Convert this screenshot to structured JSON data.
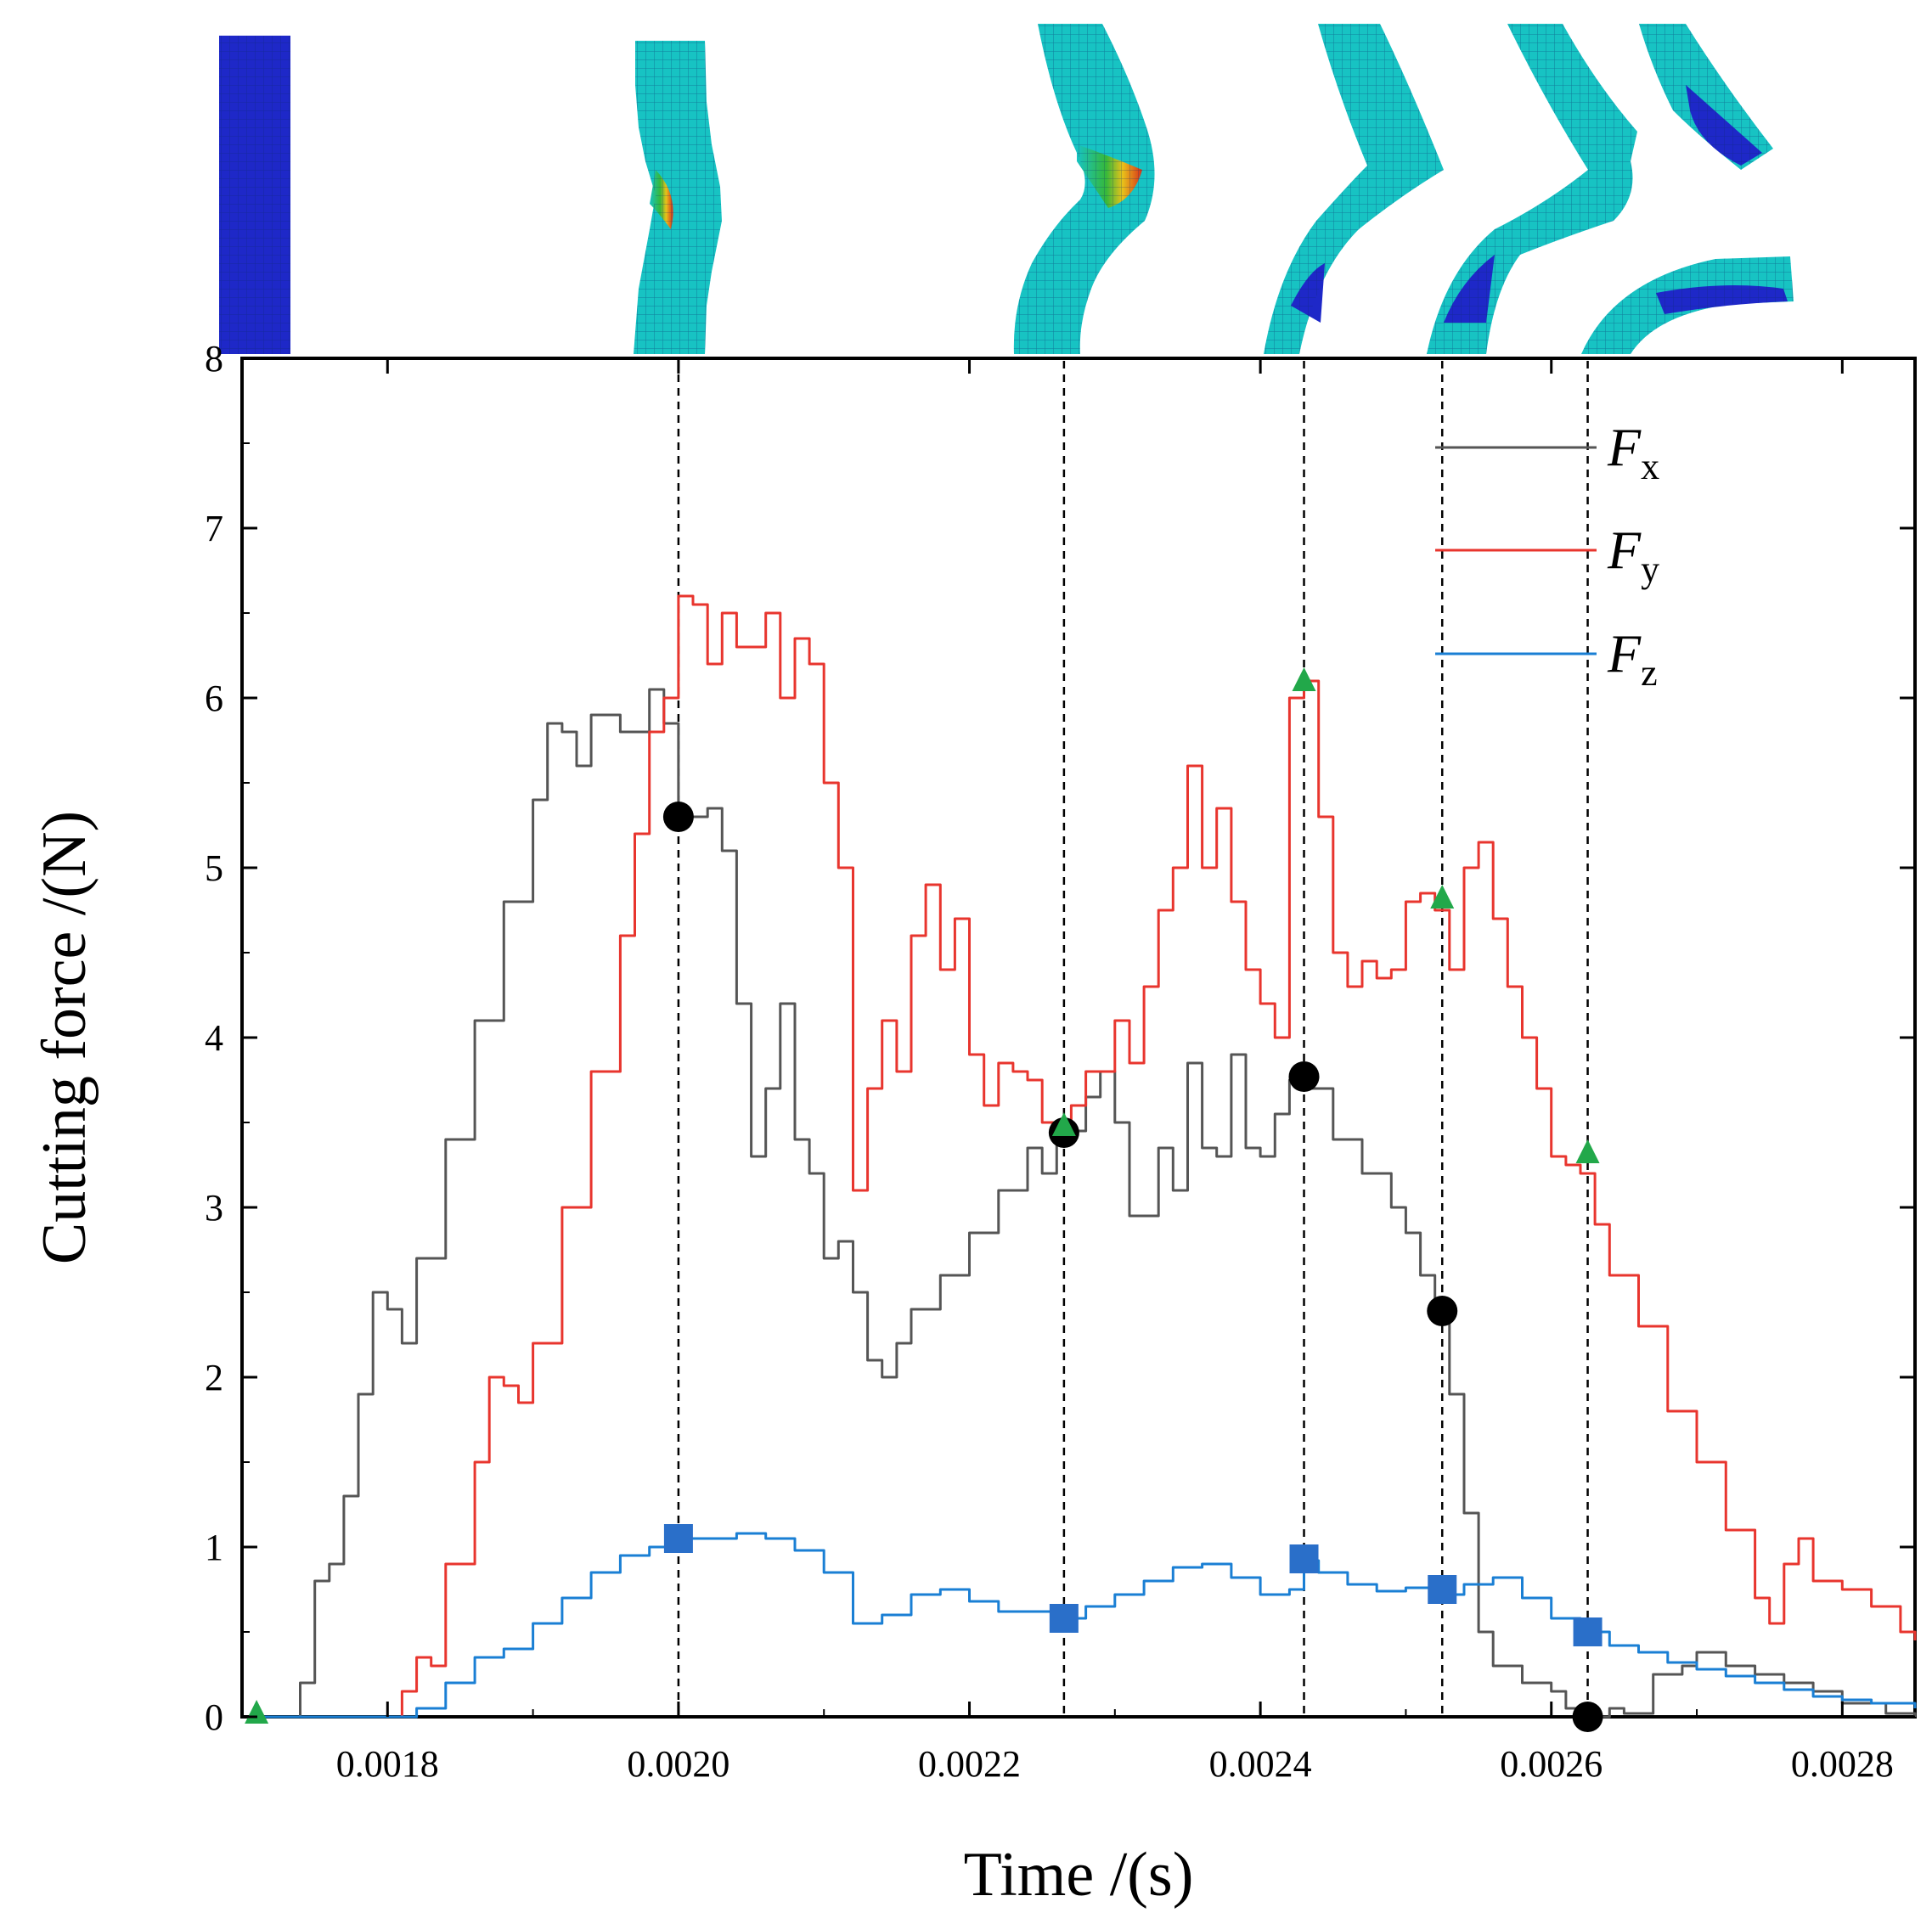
{
  "chart_data": {
    "type": "line",
    "xlabel": "Time /(s)",
    "ylabel": "Cutting force /(N)",
    "xlim": [
      0.0017,
      0.00285
    ],
    "ylim": [
      0,
      8
    ],
    "xticks": [
      0.0018,
      0.002,
      0.0022,
      0.0024,
      0.0026,
      0.0028
    ],
    "xtick_labels": [
      "0.0018",
      "0.0020",
      "0.0022",
      "0.0024",
      "0.0026",
      "0.0028"
    ],
    "yticks": [
      0,
      1,
      2,
      3,
      4,
      5,
      6,
      7,
      8
    ],
    "ytick_labels": [
      "0",
      "1",
      "2",
      "3",
      "4",
      "5",
      "6",
      "7",
      "8"
    ],
    "grid": false,
    "legend_position": "top-right",
    "series": [
      {
        "name": "F",
        "subscript": "x",
        "color": "#555555",
        "marker": "circle",
        "marker_color": "#000000",
        "points": [
          [
            0.00171,
            0
          ],
          [
            0.00173,
            0
          ],
          [
            0.00174,
            0.2
          ],
          [
            0.00175,
            0.8
          ],
          [
            0.00176,
            0.9
          ],
          [
            0.00177,
            1.3
          ],
          [
            0.00178,
            1.9
          ],
          [
            0.00179,
            2.5
          ],
          [
            0.0018,
            2.4
          ],
          [
            0.00181,
            2.2
          ],
          [
            0.00182,
            2.7
          ],
          [
            0.00184,
            3.4
          ],
          [
            0.00186,
            4.1
          ],
          [
            0.00188,
            4.8
          ],
          [
            0.0019,
            5.4
          ],
          [
            0.00191,
            5.85
          ],
          [
            0.00192,
            5.8
          ],
          [
            0.00193,
            5.6
          ],
          [
            0.00194,
            5.9
          ],
          [
            0.00196,
            5.8
          ],
          [
            0.00198,
            6.05
          ],
          [
            0.00199,
            5.85
          ],
          [
            0.002,
            5.3
          ],
          [
            0.00202,
            5.35
          ],
          [
            0.00203,
            5.1
          ],
          [
            0.00204,
            4.2
          ],
          [
            0.00205,
            3.3
          ],
          [
            0.00206,
            3.7
          ],
          [
            0.00207,
            4.2
          ],
          [
            0.00208,
            3.4
          ],
          [
            0.00209,
            3.2
          ],
          [
            0.0021,
            2.7
          ],
          [
            0.00211,
            2.8
          ],
          [
            0.00212,
            2.5
          ],
          [
            0.00213,
            2.1
          ],
          [
            0.00214,
            2.0
          ],
          [
            0.00215,
            2.2
          ],
          [
            0.00216,
            2.4
          ],
          [
            0.00218,
            2.6
          ],
          [
            0.0022,
            2.85
          ],
          [
            0.00222,
            3.1
          ],
          [
            0.00224,
            3.35
          ],
          [
            0.00225,
            3.2
          ],
          [
            0.00226,
            3.45
          ],
          [
            0.00228,
            3.65
          ],
          [
            0.00229,
            3.8
          ],
          [
            0.0023,
            3.5
          ],
          [
            0.00231,
            2.95
          ],
          [
            0.00232,
            2.95
          ],
          [
            0.00233,
            3.35
          ],
          [
            0.00234,
            3.1
          ],
          [
            0.00235,
            3.85
          ],
          [
            0.00236,
            3.35
          ],
          [
            0.00237,
            3.3
          ],
          [
            0.00238,
            3.9
          ],
          [
            0.00239,
            3.35
          ],
          [
            0.0024,
            3.3
          ],
          [
            0.00241,
            3.55
          ],
          [
            0.00242,
            3.75
          ],
          [
            0.00243,
            3.7
          ],
          [
            0.00245,
            3.4
          ],
          [
            0.00247,
            3.2
          ],
          [
            0.00249,
            3.0
          ],
          [
            0.0025,
            2.85
          ],
          [
            0.00251,
            2.6
          ],
          [
            0.00252,
            2.35
          ],
          [
            0.00253,
            1.9
          ],
          [
            0.00254,
            1.2
          ],
          [
            0.00255,
            0.5
          ],
          [
            0.00256,
            0.3
          ],
          [
            0.00258,
            0.2
          ],
          [
            0.0026,
            0.15
          ],
          [
            0.00261,
            0.05
          ],
          [
            0.00262,
            0
          ],
          [
            0.00264,
            0.05
          ],
          [
            0.00265,
            0.02
          ],
          [
            0.00267,
            0.25
          ],
          [
            0.00269,
            0.3
          ],
          [
            0.0027,
            0.38
          ],
          [
            0.00272,
            0.3
          ],
          [
            0.00274,
            0.25
          ],
          [
            0.00276,
            0.2
          ],
          [
            0.00278,
            0.15
          ],
          [
            0.0028,
            0.08
          ],
          [
            0.00283,
            0.02
          ],
          [
            0.00285,
            0
          ]
        ]
      },
      {
        "name": "F",
        "subscript": "y",
        "color": "#e8352e",
        "marker": "triangle",
        "marker_color": "#22a84a",
        "points": [
          [
            0.00171,
            0
          ],
          [
            0.00179,
            0
          ],
          [
            0.00181,
            0.15
          ],
          [
            0.00182,
            0.35
          ],
          [
            0.00183,
            0.3
          ],
          [
            0.00184,
            0.9
          ],
          [
            0.00186,
            1.5
          ],
          [
            0.00187,
            2.0
          ],
          [
            0.00188,
            1.95
          ],
          [
            0.00189,
            1.85
          ],
          [
            0.0019,
            2.2
          ],
          [
            0.00192,
            3.0
          ],
          [
            0.00194,
            3.8
          ],
          [
            0.00196,
            4.6
          ],
          [
            0.00197,
            5.2
          ],
          [
            0.00198,
            5.8
          ],
          [
            0.00199,
            6.0
          ],
          [
            0.002,
            6.6
          ],
          [
            0.00201,
            6.55
          ],
          [
            0.00202,
            6.2
          ],
          [
            0.00203,
            6.5
          ],
          [
            0.00204,
            6.3
          ],
          [
            0.00206,
            6.5
          ],
          [
            0.00207,
            6.0
          ],
          [
            0.00208,
            6.35
          ],
          [
            0.00209,
            6.2
          ],
          [
            0.0021,
            5.5
          ],
          [
            0.00211,
            5.0
          ],
          [
            0.00212,
            3.1
          ],
          [
            0.00213,
            3.7
          ],
          [
            0.00214,
            4.1
          ],
          [
            0.00215,
            3.8
          ],
          [
            0.00216,
            4.6
          ],
          [
            0.00217,
            4.9
          ],
          [
            0.00218,
            4.4
          ],
          [
            0.00219,
            4.7
          ],
          [
            0.0022,
            3.9
          ],
          [
            0.00221,
            3.6
          ],
          [
            0.00222,
            3.85
          ],
          [
            0.00223,
            3.8
          ],
          [
            0.00224,
            3.75
          ],
          [
            0.00225,
            3.5
          ],
          [
            0.00226,
            3.45
          ],
          [
            0.00227,
            3.6
          ],
          [
            0.00228,
            3.8
          ],
          [
            0.0023,
            4.1
          ],
          [
            0.00231,
            3.85
          ],
          [
            0.00232,
            4.3
          ],
          [
            0.00233,
            4.75
          ],
          [
            0.00234,
            5.0
          ],
          [
            0.00235,
            5.6
          ],
          [
            0.00236,
            5.0
          ],
          [
            0.00237,
            5.35
          ],
          [
            0.00238,
            4.8
          ],
          [
            0.00239,
            4.4
          ],
          [
            0.0024,
            4.2
          ],
          [
            0.00241,
            4.0
          ],
          [
            0.00242,
            6.0
          ],
          [
            0.00243,
            6.1
          ],
          [
            0.00244,
            5.3
          ],
          [
            0.00245,
            4.5
          ],
          [
            0.00246,
            4.3
          ],
          [
            0.00247,
            4.45
          ],
          [
            0.00248,
            4.35
          ],
          [
            0.00249,
            4.4
          ],
          [
            0.0025,
            4.8
          ],
          [
            0.00251,
            4.85
          ],
          [
            0.00252,
            4.75
          ],
          [
            0.00253,
            4.4
          ],
          [
            0.00254,
            5.0
          ],
          [
            0.00255,
            5.15
          ],
          [
            0.00256,
            4.7
          ],
          [
            0.00257,
            4.3
          ],
          [
            0.00258,
            4.0
          ],
          [
            0.00259,
            3.7
          ],
          [
            0.0026,
            3.3
          ],
          [
            0.00261,
            3.25
          ],
          [
            0.00262,
            3.2
          ],
          [
            0.00263,
            2.9
          ],
          [
            0.00264,
            2.6
          ],
          [
            0.00266,
            2.3
          ],
          [
            0.00268,
            1.8
          ],
          [
            0.0027,
            1.5
          ],
          [
            0.00272,
            1.1
          ],
          [
            0.00274,
            0.7
          ],
          [
            0.00275,
            0.55
          ],
          [
            0.00276,
            0.9
          ],
          [
            0.00277,
            1.05
          ],
          [
            0.00278,
            0.8
          ],
          [
            0.0028,
            0.75
          ],
          [
            0.00282,
            0.65
          ],
          [
            0.00284,
            0.5
          ],
          [
            0.00285,
            0.45
          ]
        ]
      },
      {
        "name": "F",
        "subscript": "z",
        "color": "#1a7fd4",
        "marker": "square",
        "marker_color": "#2a6fc9",
        "points": [
          [
            0.00171,
            0
          ],
          [
            0.0018,
            0
          ],
          [
            0.00182,
            0.05
          ],
          [
            0.00184,
            0.2
          ],
          [
            0.00186,
            0.35
          ],
          [
            0.00188,
            0.4
          ],
          [
            0.0019,
            0.55
          ],
          [
            0.00192,
            0.7
          ],
          [
            0.00194,
            0.85
          ],
          [
            0.00196,
            0.95
          ],
          [
            0.00198,
            1.0
          ],
          [
            0.002,
            1.05
          ],
          [
            0.00202,
            1.05
          ],
          [
            0.00204,
            1.08
          ],
          [
            0.00206,
            1.05
          ],
          [
            0.00208,
            0.98
          ],
          [
            0.0021,
            0.85
          ],
          [
            0.00212,
            0.55
          ],
          [
            0.00214,
            0.6
          ],
          [
            0.00216,
            0.72
          ],
          [
            0.00218,
            0.75
          ],
          [
            0.0022,
            0.68
          ],
          [
            0.00222,
            0.62
          ],
          [
            0.00224,
            0.62
          ],
          [
            0.00226,
            0.58
          ],
          [
            0.00228,
            0.65
          ],
          [
            0.0023,
            0.72
          ],
          [
            0.00232,
            0.8
          ],
          [
            0.00234,
            0.88
          ],
          [
            0.00236,
            0.9
          ],
          [
            0.00238,
            0.82
          ],
          [
            0.0024,
            0.72
          ],
          [
            0.00242,
            0.75
          ],
          [
            0.00243,
            0.92
          ],
          [
            0.00244,
            0.85
          ],
          [
            0.00246,
            0.78
          ],
          [
            0.00248,
            0.74
          ],
          [
            0.0025,
            0.76
          ],
          [
            0.00252,
            0.72
          ],
          [
            0.00254,
            0.78
          ],
          [
            0.00256,
            0.82
          ],
          [
            0.00258,
            0.7
          ],
          [
            0.0026,
            0.58
          ],
          [
            0.00262,
            0.5
          ],
          [
            0.00264,
            0.42
          ],
          [
            0.00266,
            0.38
          ],
          [
            0.00268,
            0.32
          ],
          [
            0.0027,
            0.28
          ],
          [
            0.00272,
            0.24
          ],
          [
            0.00274,
            0.2
          ],
          [
            0.00276,
            0.16
          ],
          [
            0.00278,
            0.12
          ],
          [
            0.0028,
            0.1
          ],
          [
            0.00282,
            0.08
          ],
          [
            0.00285,
            0.05
          ]
        ]
      }
    ],
    "guide_times": [
      0.002,
      0.002265,
      0.00243,
      0.002525,
      0.002625
    ],
    "markers": {
      "circles": [
        [
          0.002,
          5.3
        ],
        [
          0.002265,
          3.44
        ],
        [
          0.00243,
          3.77
        ],
        [
          0.002525,
          2.39
        ],
        [
          0.002625,
          0
        ]
      ],
      "triangles": [
        [
          0.00171,
          0.02
        ],
        [
          0.002265,
          3.48
        ],
        [
          0.00243,
          6.1
        ],
        [
          0.002525,
          4.82
        ],
        [
          0.002625,
          3.32
        ]
      ],
      "squares": [
        [
          0.002,
          1.05
        ],
        [
          0.002265,
          0.58
        ],
        [
          0.00243,
          0.93
        ],
        [
          0.002525,
          0.75
        ],
        [
          0.002625,
          0.5
        ]
      ]
    },
    "snapshot_colors": [
      "#1e28c8",
      "#17c3c3",
      "#36b83a",
      "#e8c21a",
      "#d8301a"
    ]
  }
}
